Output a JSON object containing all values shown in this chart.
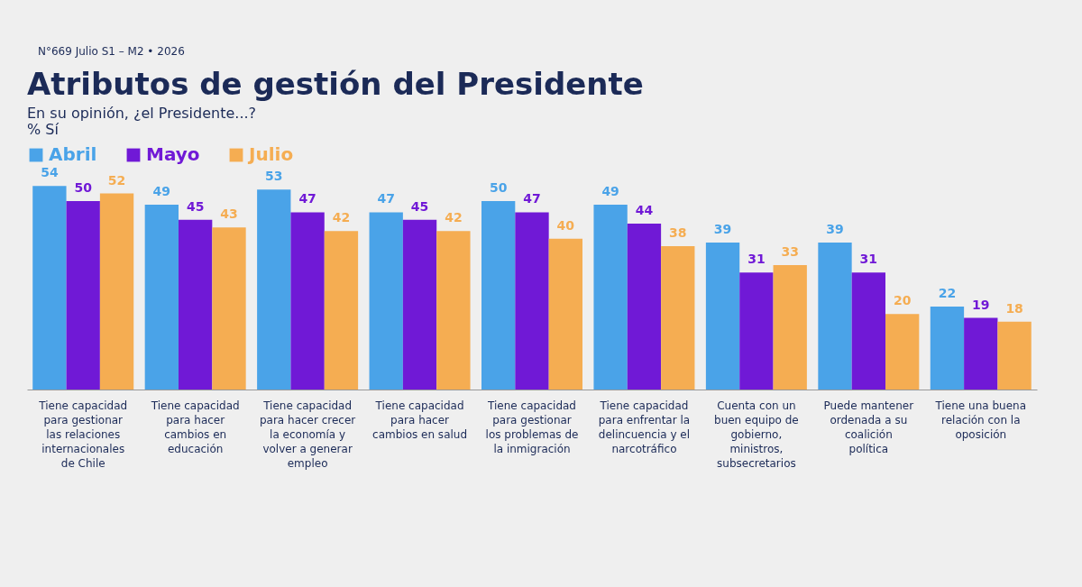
{
  "chart_data": {
    "type": "bar",
    "title": "Atributos de gestión del Presidente",
    "subtitle": "En su opinión, ¿el Presidente...?",
    "ylabel": "% Sí",
    "annotations": [
      "N°669 Julio S1 – M2 • 2026"
    ],
    "categories": [
      "Tiene capacidad para gestionar las relaciones internacionales de Chile",
      "Tiene capacidad para hacer cambios en educación",
      "Tiene capacidad para hacer crecer la economía y volver a generar empleo",
      "Tiene capacidad para hacer cambios en salud",
      "Tiene capacidad para gestionar los problemas de la inmigración",
      "Tiene capacidad para enfrentar la delincuencia y el narcotráfico",
      "Cuenta con un buen equipo de gobierno, ministros, subsecretarios",
      "Puede mantener ordenada a su coalición política",
      "Tiene una buena relación con la oposición"
    ],
    "series": [
      {
        "name": "Abril",
        "color": "#4aa3e8",
        "values": [
          54,
          49,
          53,
          47,
          50,
          49,
          39,
          39,
          22
        ]
      },
      {
        "name": "Mayo",
        "color": "#7019d6",
        "values": [
          50,
          45,
          47,
          45,
          47,
          44,
          31,
          31,
          19
        ]
      },
      {
        "name": "Julio",
        "color": "#f5ad52",
        "values": [
          52,
          43,
          42,
          42,
          40,
          38,
          33,
          20,
          18
        ]
      }
    ],
    "data_labels": true,
    "legend": "top",
    "grid": false
  }
}
